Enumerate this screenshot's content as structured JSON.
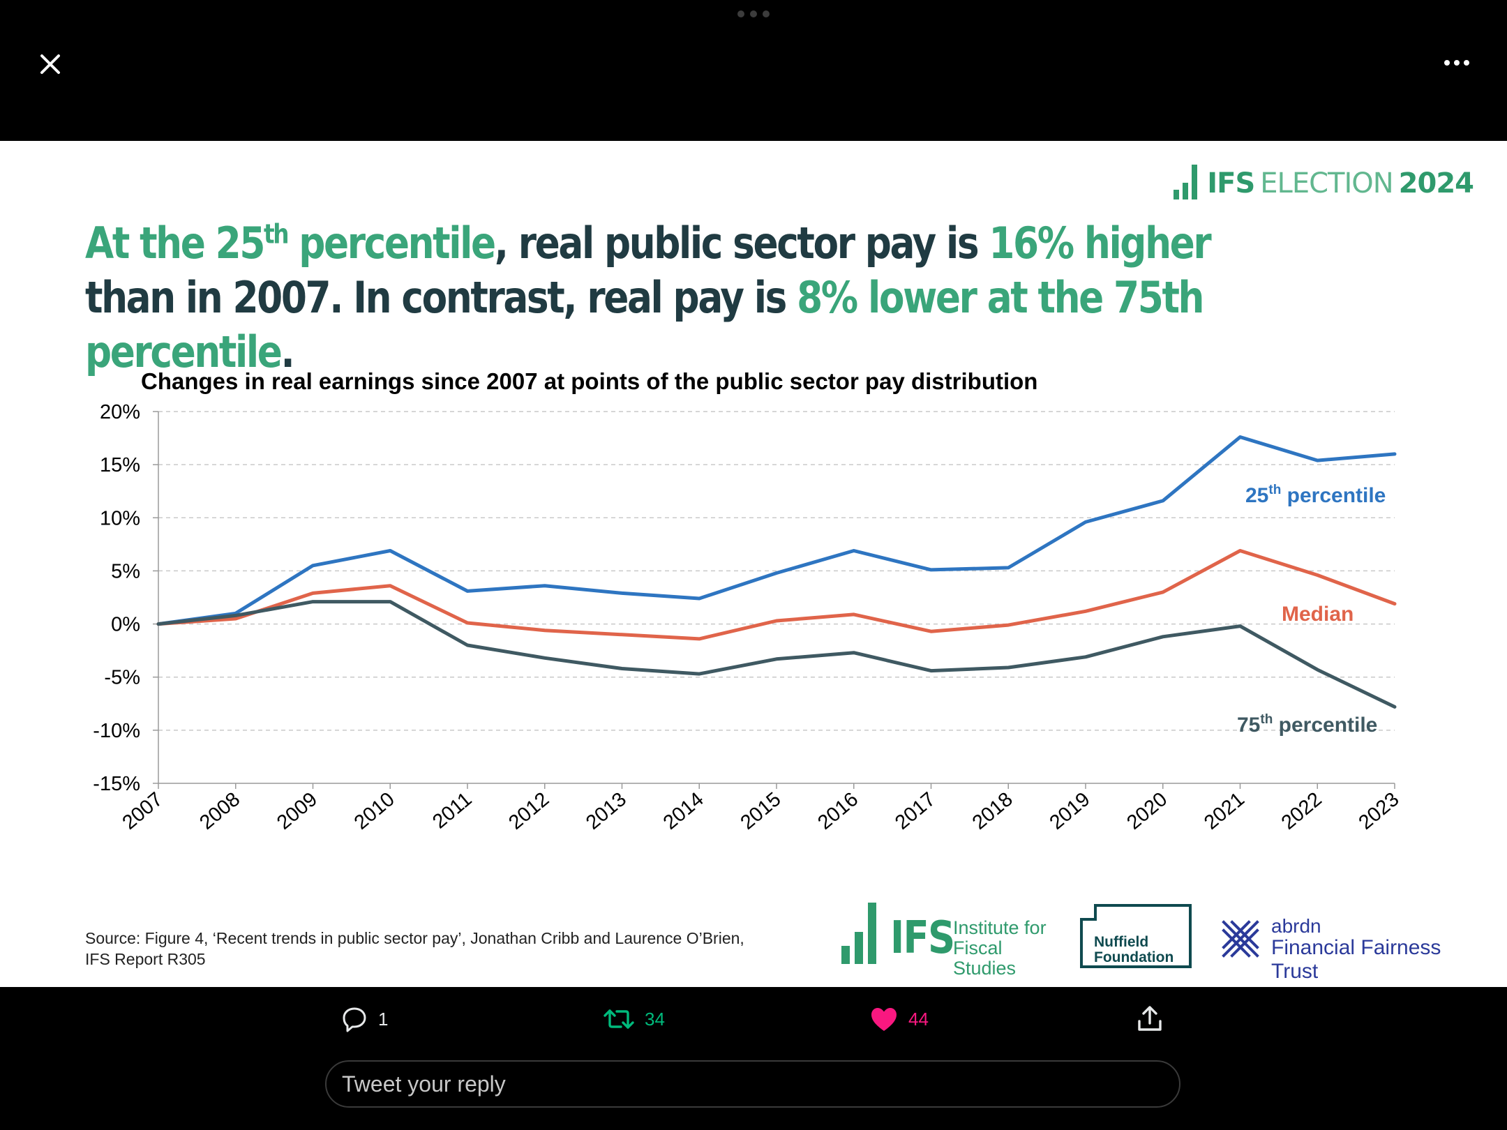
{
  "window": {
    "close_icon": "close-icon",
    "more_icon": "more-icon"
  },
  "brand": {
    "ifs": "IFS",
    "election": "ELECTION",
    "year": "2024"
  },
  "headline": {
    "p1": "At the 25",
    "p1_sup": "th",
    "p2": " percentile",
    "p3": ", real public sector pay is ",
    "p4": "16% higher",
    "p5": " than in 2007. In contrast, real pay is ",
    "p6": "8% lower at the 75th percentile",
    "p7": "."
  },
  "chart_data": {
    "type": "line",
    "title": "Changes in real earnings since 2007 at points of the public sector pay distribution",
    "x": [
      "2007",
      "2008",
      "2009",
      "2010",
      "2011",
      "2012",
      "2013",
      "2014",
      "2015",
      "2016",
      "2017",
      "2018",
      "2019",
      "2020",
      "2021",
      "2022",
      "2023"
    ],
    "ylim": [
      -15,
      20
    ],
    "yticks": [
      20,
      15,
      10,
      5,
      0,
      -5,
      -10,
      -15
    ],
    "ytick_labels": [
      "20%",
      "15%",
      "10%",
      "5%",
      "0%",
      "-5%",
      "-10%",
      "-15%"
    ],
    "grid": true,
    "series": [
      {
        "name": "25th percentile",
        "label_main": "25",
        "label_sup": "th",
        "label_rest": " percentile",
        "color": "#2e75c1",
        "values": [
          0,
          1.0,
          5.5,
          6.9,
          3.1,
          3.6,
          2.9,
          2.4,
          4.8,
          6.9,
          5.1,
          5.3,
          9.6,
          11.6,
          17.6,
          15.4,
          16.0
        ]
      },
      {
        "name": "Median",
        "label_main": "Median",
        "label_sup": "",
        "label_rest": "",
        "color": "#e0644a",
        "values": [
          0,
          0.5,
          2.9,
          3.6,
          0.1,
          -0.6,
          -1.0,
          -1.4,
          0.3,
          0.9,
          -0.7,
          -0.1,
          1.2,
          3.0,
          6.9,
          4.6,
          1.9
        ]
      },
      {
        "name": "75th percentile",
        "label_main": "75",
        "label_sup": "th",
        "label_rest": " percentile",
        "color": "#3f5962",
        "values": [
          0,
          0.8,
          2.1,
          2.1,
          -2.0,
          -3.2,
          -4.2,
          -4.7,
          -3.3,
          -2.7,
          -4.4,
          -4.1,
          -3.1,
          -1.2,
          -0.2,
          -4.3,
          -7.8
        ]
      }
    ]
  },
  "source": {
    "text": "Source: Figure 4, ‘Recent trends in public sector pay’, Jonathan Cribb and Laurence O’Brien, IFS Report R305"
  },
  "logos": {
    "ifs_mark": "IFS",
    "ifs_line1": "Institute for",
    "ifs_line2": "Fiscal Studies",
    "nuffield_line1": "Nuffield",
    "nuffield_line2": "Foundation",
    "abrdn_line1": "abrdn",
    "abrdn_line2": "Financial Fairness Trust"
  },
  "actions": {
    "reply_icon": "reply-icon",
    "reply_count": "1",
    "retweet_icon": "retweet-icon",
    "retweet_count": "34",
    "retweet_color": "#00ba7c",
    "like_icon": "heart-icon",
    "like_count": "44",
    "like_color": "#f91880",
    "share_icon": "share-icon"
  },
  "reply": {
    "placeholder": "Tweet your reply"
  }
}
